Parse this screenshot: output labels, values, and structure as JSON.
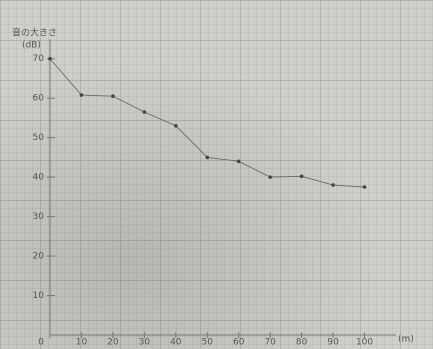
{
  "chart_data": {
    "type": "line",
    "y_label": "音の大きさ",
    "y_unit": "(dB)",
    "x_unit": "(m)",
    "x": [
      0,
      10,
      20,
      30,
      40,
      50,
      60,
      70,
      80,
      90,
      100
    ],
    "series": [
      {
        "color": "#6a6a6a",
        "values": [
          70,
          60.8,
          60.5,
          56.5,
          53,
          45,
          44,
          40,
          40.2,
          38,
          37.5
        ]
      }
    ],
    "xlim": [
      0,
      110
    ],
    "xticks": [
      0,
      10,
      20,
      30,
      40,
      50,
      60,
      70,
      80,
      90,
      100
    ],
    "ylim": [
      0,
      75
    ],
    "yticks": [
      10,
      20,
      30,
      40,
      50,
      60,
      70
    ]
  }
}
